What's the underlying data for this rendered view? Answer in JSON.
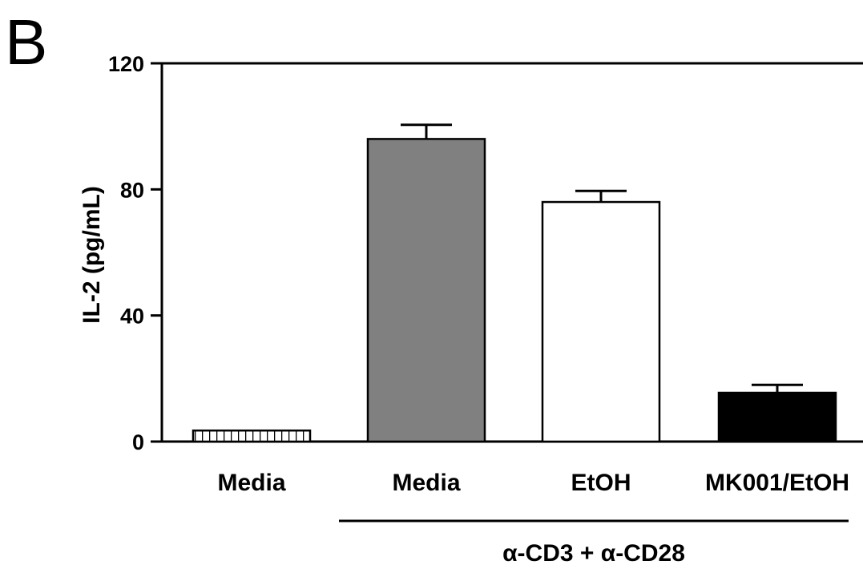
{
  "panel_label": "B",
  "chart_data": {
    "type": "bar",
    "categories": [
      "Media",
      "Media",
      "EtOH",
      "MK001/EtOH"
    ],
    "values": [
      3.5,
      96,
      76,
      15.5
    ],
    "errors": [
      0,
      4.5,
      3.5,
      2.5
    ],
    "ylabel": "IL-2 (pg/mL)",
    "xlabel": "",
    "ylim": [
      0,
      120
    ],
    "yticks": [
      0,
      40,
      80,
      120
    ],
    "ytick_labels": [
      "0",
      "40",
      "80",
      "120"
    ],
    "bar_styles": [
      "hatched",
      "gray",
      "white",
      "black"
    ],
    "colors": {
      "gray": "#808080",
      "black": "#000000",
      "white": "#ffffff",
      "axis": "#000000"
    },
    "group_label": "α-CD3 + α-CD28",
    "group_spans_categories": [
      1,
      3
    ],
    "grid": false
  }
}
